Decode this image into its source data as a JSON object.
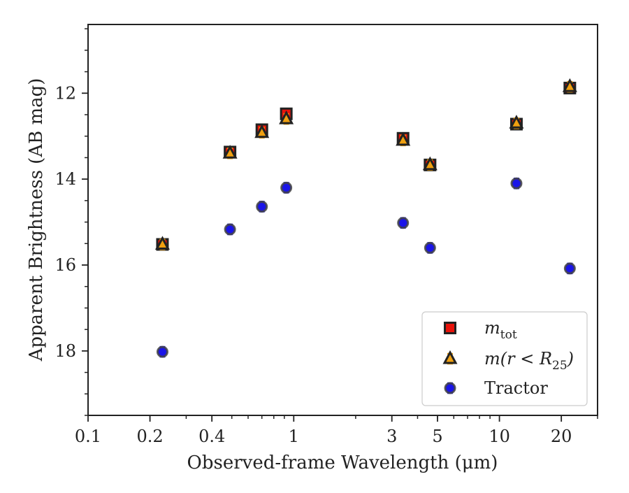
{
  "chart_data": {
    "type": "scatter",
    "xscale": "log",
    "yaxis_inverted": true,
    "xlim": [
      0.1,
      30
    ],
    "ylim": [
      19.5,
      10.4
    ],
    "xlabel": "Observed-frame Wavelength (μm)",
    "ylabel": "Apparent Brightness (AB mag)",
    "x_ticks": [
      {
        "value": 0.1,
        "label": "0.1"
      },
      {
        "value": 0.2,
        "label": "0.2"
      },
      {
        "value": 0.4,
        "label": "0.4"
      },
      {
        "value": 1,
        "label": "1"
      },
      {
        "value": 3,
        "label": "3"
      },
      {
        "value": 5,
        "label": "5"
      },
      {
        "value": 10,
        "label": "10"
      },
      {
        "value": 20,
        "label": "20"
      }
    ],
    "y_ticks": [
      {
        "value": 12,
        "label": "12"
      },
      {
        "value": 14,
        "label": "14"
      },
      {
        "value": 16,
        "label": "16"
      },
      {
        "value": 18,
        "label": "18"
      }
    ],
    "grid": false,
    "legend_position": "lower-right",
    "x": [
      0.23,
      0.49,
      0.7,
      0.92,
      3.4,
      4.6,
      12.1,
      22.0
    ],
    "series": [
      {
        "name": "m_tot",
        "legend_main": "m",
        "legend_sub": "tot",
        "marker": "square",
        "face_color": "#e8130b",
        "edge_color": "#222222",
        "values": [
          15.52,
          13.37,
          12.85,
          12.48,
          13.05,
          13.67,
          12.72,
          11.88
        ]
      },
      {
        "name": "m(r < R25)",
        "legend_main": "m(r < R",
        "legend_sub": "25",
        "legend_tail": ")",
        "marker": "triangle",
        "face_color": "#f0a010",
        "edge_color": "#222222",
        "values": [
          15.52,
          13.4,
          12.92,
          12.6,
          13.1,
          13.67,
          12.7,
          11.85
        ]
      },
      {
        "name": "Tractor",
        "legend_main": "Tractor",
        "marker": "circle",
        "face_color": "#1a14e8",
        "edge_color": "#444444",
        "values": [
          18.02,
          15.17,
          14.64,
          14.2,
          15.02,
          15.6,
          14.1,
          16.08
        ]
      }
    ]
  }
}
